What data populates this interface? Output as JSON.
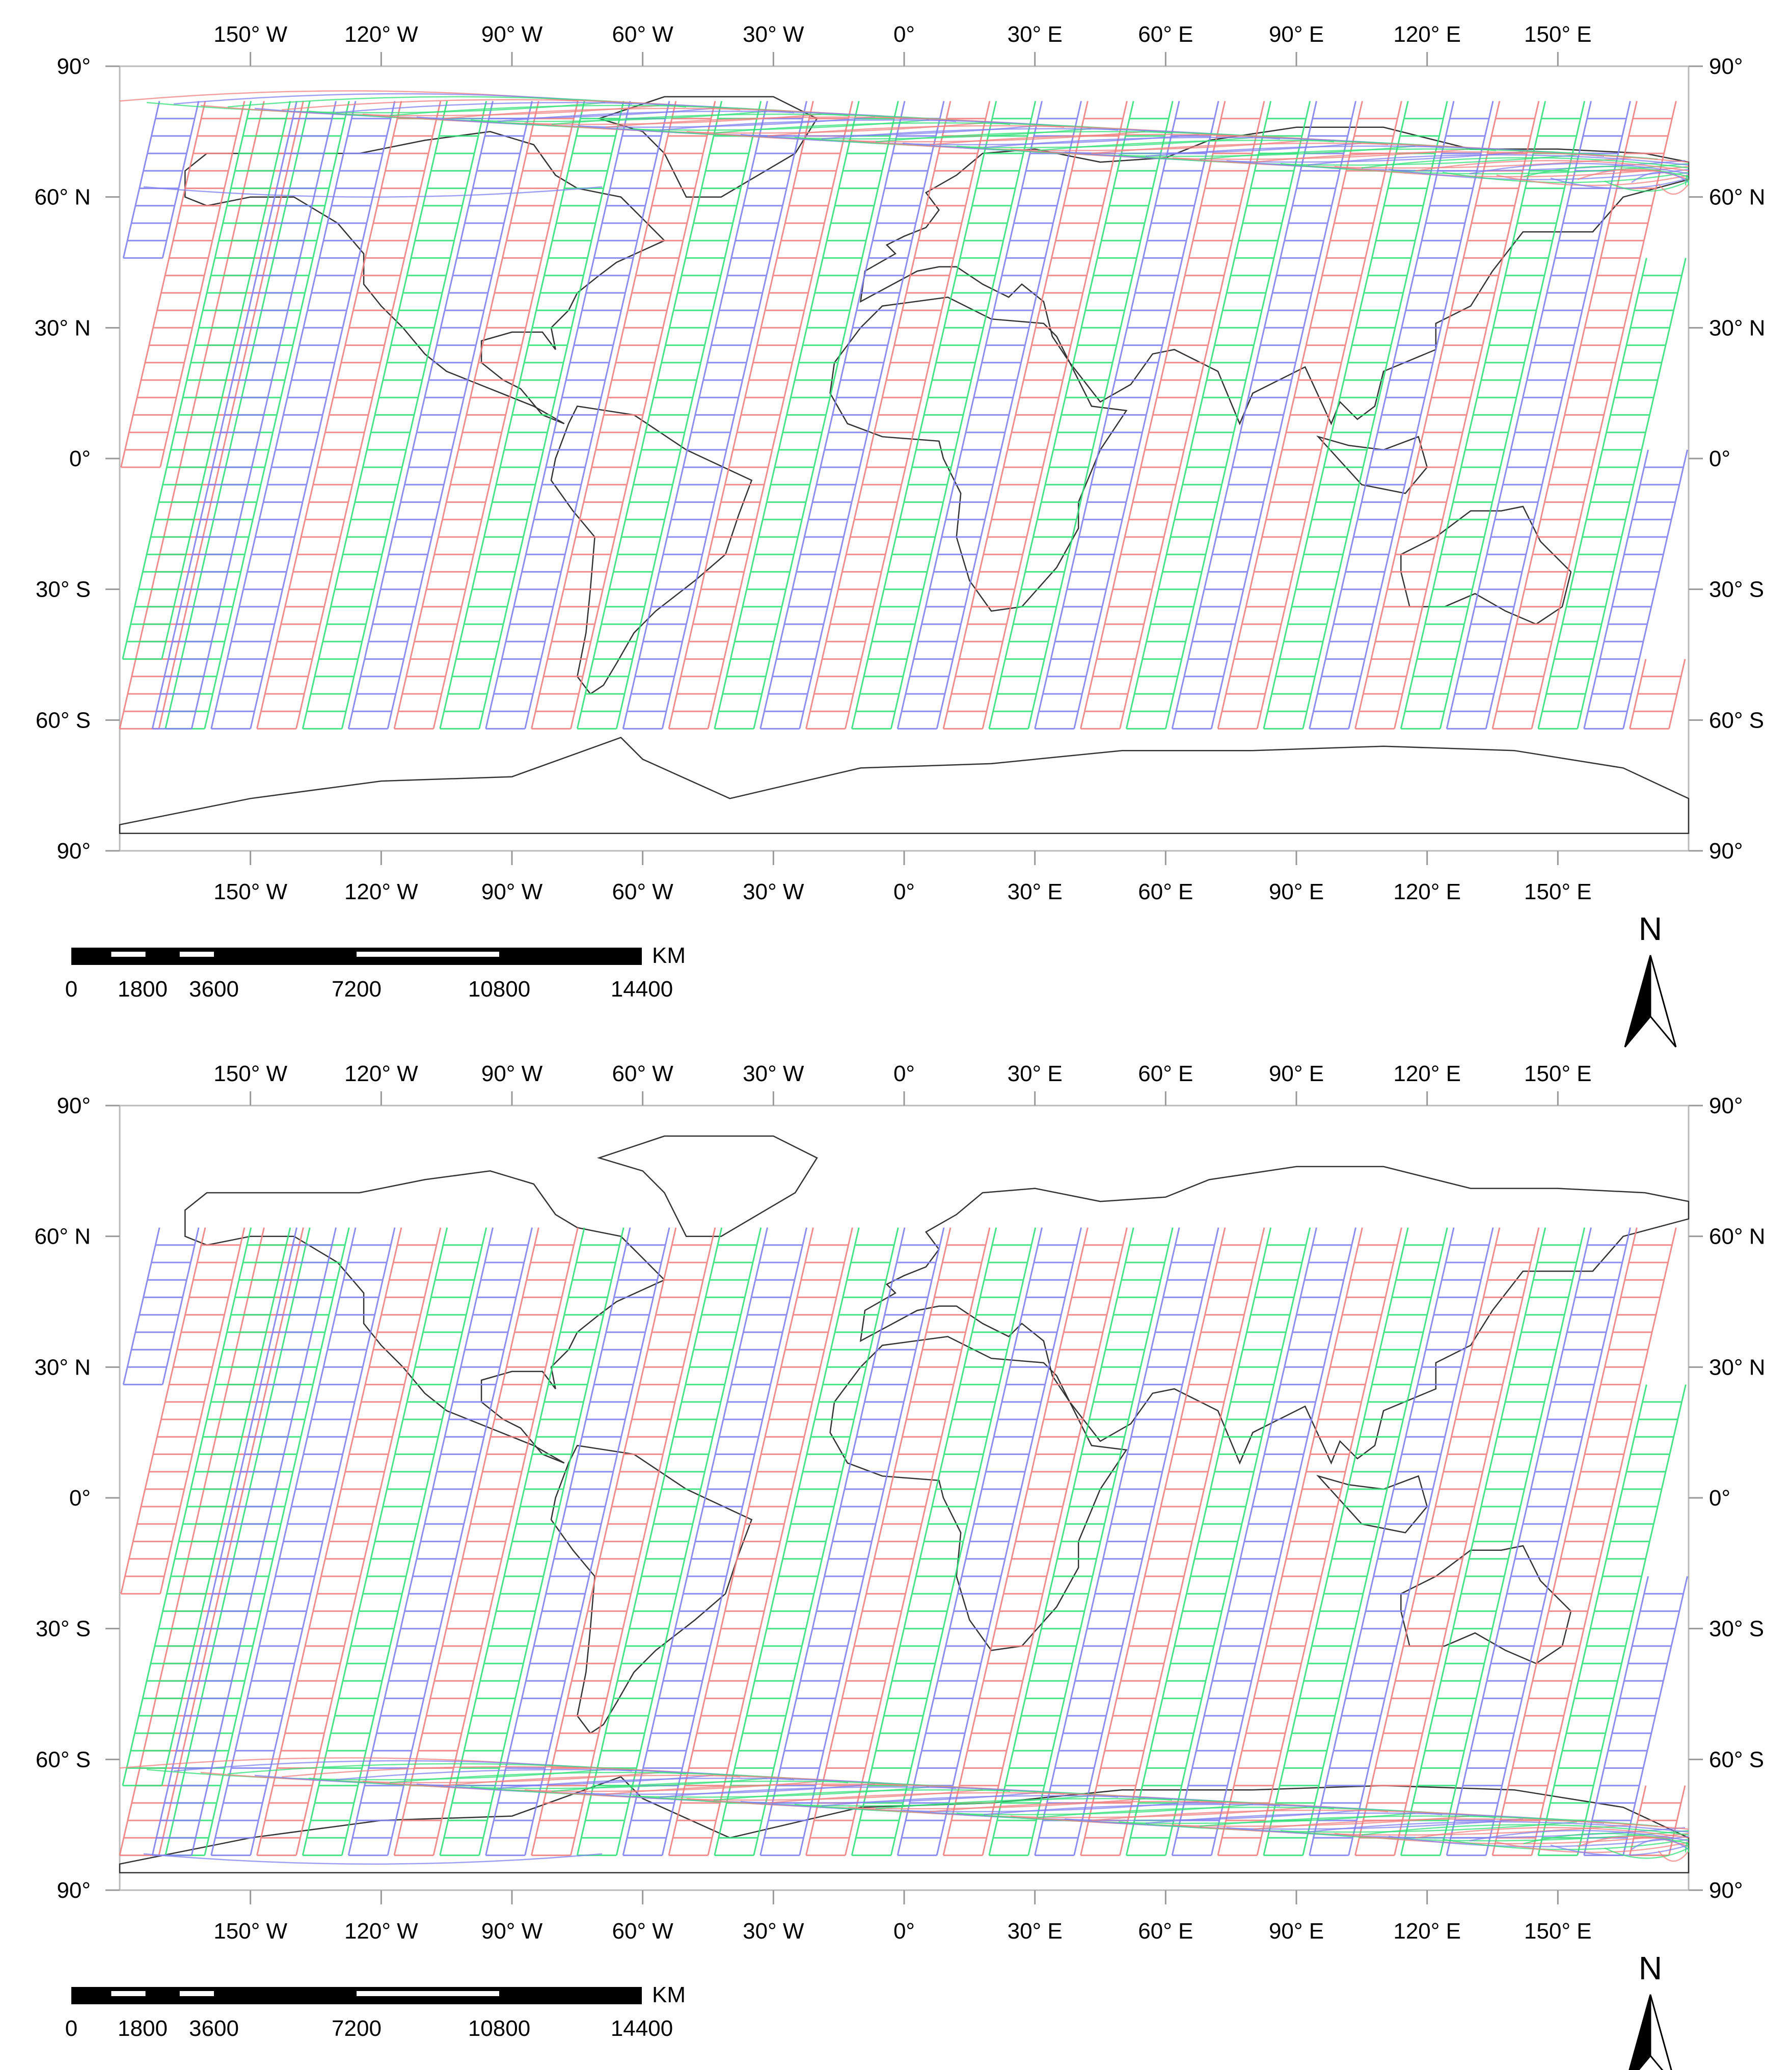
{
  "map": {
    "lon_labels": [
      "150° W",
      "120° W",
      "90° W",
      "60° W",
      "30° W",
      "0°",
      "30° E",
      "60° E",
      "90° E",
      "120° E",
      "150° E"
    ],
    "lat_labels": [
      "90°",
      "60° N",
      "30° N",
      "0°",
      "30° S",
      "60° S",
      "90°"
    ],
    "lat_values": [
      90,
      60,
      30,
      0,
      -30,
      -60,
      -90
    ],
    "lon_values": [
      -150,
      -120,
      -90,
      -60,
      -30,
      0,
      30,
      60,
      90,
      120,
      150
    ],
    "colors": {
      "swath_red": "#f08080",
      "swath_green": "#33e07a",
      "swath_blue": "#7f7ff0",
      "coast": "#333333"
    }
  },
  "panels": [
    {
      "id": "ascending",
      "swath_direction": "north-east",
      "crowded_pole": "north"
    },
    {
      "id": "descending",
      "swath_direction": "north-east",
      "crowded_pole": "south"
    }
  ],
  "scalebar": {
    "unit": "KM",
    "labels": [
      "0",
      "1800",
      "3600",
      "7200",
      "10800",
      "14400"
    ]
  },
  "north_arrow": {
    "label": "N"
  }
}
